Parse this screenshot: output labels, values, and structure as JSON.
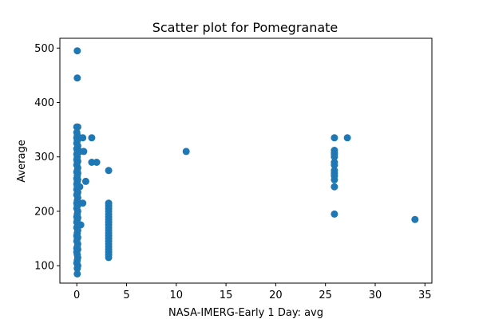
{
  "chart_data": {
    "type": "scatter",
    "title": "Scatter plot for Pomegranate",
    "xlabel": "NASA-IMERG-Early 1 Day: avg",
    "ylabel": "Average",
    "xlim": [
      -1.7,
      35.7
    ],
    "ylim": [
      68,
      518
    ],
    "xticks": [
      0,
      5,
      10,
      15,
      20,
      25,
      30,
      35
    ],
    "yticks": [
      100,
      200,
      300,
      400,
      500
    ],
    "grid": false,
    "marker_color": "#1f77b4",
    "series": [
      {
        "points": [
          [
            0.05,
            495
          ],
          [
            0.05,
            445
          ],
          [
            0.0,
            355
          ],
          [
            0.1,
            355
          ],
          [
            0.0,
            345
          ],
          [
            0.05,
            340
          ],
          [
            0.0,
            335
          ],
          [
            0.1,
            335
          ],
          [
            0.05,
            330
          ],
          [
            0.0,
            325
          ],
          [
            0.1,
            320
          ],
          [
            0.0,
            315
          ],
          [
            0.05,
            312
          ],
          [
            0.1,
            310
          ],
          [
            0.0,
            305
          ],
          [
            0.05,
            300
          ],
          [
            0.0,
            295
          ],
          [
            0.1,
            292
          ],
          [
            0.05,
            290
          ],
          [
            0.0,
            285
          ],
          [
            0.1,
            280
          ],
          [
            0.05,
            275
          ],
          [
            0.0,
            272
          ],
          [
            0.1,
            270
          ],
          [
            0.05,
            265
          ],
          [
            0.0,
            260
          ],
          [
            0.1,
            258
          ],
          [
            0.05,
            255
          ],
          [
            0.0,
            250
          ],
          [
            0.1,
            247
          ],
          [
            0.05,
            245
          ],
          [
            0.0,
            240
          ],
          [
            0.1,
            235
          ],
          [
            0.05,
            232
          ],
          [
            0.0,
            230
          ],
          [
            0.1,
            225
          ],
          [
            0.05,
            220
          ],
          [
            0.0,
            215
          ],
          [
            0.1,
            212
          ],
          [
            0.05,
            210
          ],
          [
            0.0,
            205
          ],
          [
            0.1,
            200
          ],
          [
            0.05,
            195
          ],
          [
            0.0,
            190
          ],
          [
            0.1,
            188
          ],
          [
            0.05,
            185
          ],
          [
            0.0,
            180
          ],
          [
            0.1,
            175
          ],
          [
            0.05,
            172
          ],
          [
            0.0,
            170
          ],
          [
            0.1,
            165
          ],
          [
            0.05,
            160
          ],
          [
            0.0,
            155
          ],
          [
            0.1,
            152
          ],
          [
            0.05,
            150
          ],
          [
            0.0,
            145
          ],
          [
            0.1,
            140
          ],
          [
            0.05,
            135
          ],
          [
            0.0,
            132
          ],
          [
            0.1,
            130
          ],
          [
            0.0,
            125
          ],
          [
            0.05,
            120
          ],
          [
            0.1,
            115
          ],
          [
            0.05,
            110
          ],
          [
            0.0,
            105
          ],
          [
            0.1,
            100
          ],
          [
            0.05,
            95
          ],
          [
            0.05,
            85
          ],
          [
            0.3,
            310
          ],
          [
            0.6,
            335
          ],
          [
            0.7,
            310
          ],
          [
            0.3,
            245
          ],
          [
            0.9,
            255
          ],
          [
            0.6,
            215
          ],
          [
            0.4,
            175
          ],
          [
            1.5,
            335
          ],
          [
            1.5,
            290
          ],
          [
            2.0,
            290
          ],
          [
            3.2,
            275
          ],
          [
            3.2,
            215
          ],
          [
            3.2,
            210
          ],
          [
            3.2,
            205
          ],
          [
            3.2,
            200
          ],
          [
            3.2,
            195
          ],
          [
            3.2,
            190
          ],
          [
            3.2,
            185
          ],
          [
            3.2,
            180
          ],
          [
            3.2,
            175
          ],
          [
            3.2,
            170
          ],
          [
            3.2,
            165
          ],
          [
            3.2,
            160
          ],
          [
            3.2,
            155
          ],
          [
            3.2,
            150
          ],
          [
            3.2,
            145
          ],
          [
            3.2,
            140
          ],
          [
            3.2,
            135
          ],
          [
            3.2,
            130
          ],
          [
            3.2,
            125
          ],
          [
            3.2,
            120
          ],
          [
            3.2,
            115
          ],
          [
            11.0,
            310
          ],
          [
            25.9,
            335
          ],
          [
            25.9,
            312
          ],
          [
            25.9,
            308
          ],
          [
            25.9,
            305
          ],
          [
            25.9,
            300
          ],
          [
            25.9,
            290
          ],
          [
            25.9,
            285
          ],
          [
            25.9,
            275
          ],
          [
            25.9,
            270
          ],
          [
            25.9,
            265
          ],
          [
            25.9,
            258
          ],
          [
            25.9,
            245
          ],
          [
            25.9,
            195
          ],
          [
            27.2,
            335
          ],
          [
            34.0,
            185
          ]
        ]
      }
    ]
  }
}
